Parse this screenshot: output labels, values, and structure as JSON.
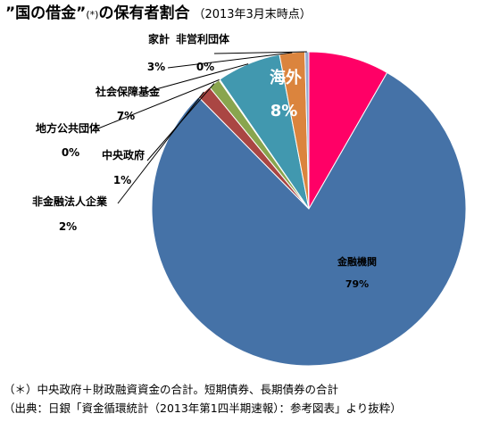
{
  "title": {
    "main": "”国の借金”",
    "mark": "(*)",
    "rest": "の保有者割合",
    "date": "（2013年3月末時点）"
  },
  "chart_data": {
    "type": "pie",
    "title": "”国の借金”(*)の保有者割合",
    "slices": [
      {
        "label": "海外",
        "percent_label": "8%",
        "value": 8.3,
        "color": "#ff0066"
      },
      {
        "label": "金融機関",
        "percent_label": "79%",
        "value": 79.3,
        "color": "#4572a7"
      },
      {
        "label": "非金融法人企業",
        "percent_label": "2%",
        "value": 1.5,
        "color": "#aa4643"
      },
      {
        "label": "中央政府",
        "percent_label": "1%",
        "value": 1.2,
        "color": "#89a54e"
      },
      {
        "label": "地方公共団体",
        "percent_label": "0%",
        "value": 0.1,
        "color": "#71588f"
      },
      {
        "label": "社会保障基金",
        "percent_label": "7%",
        "value": 6.6,
        "color": "#4198af"
      },
      {
        "label": "家計",
        "percent_label": "3%",
        "value": 2.6,
        "color": "#db843d"
      },
      {
        "label": "非営利団体",
        "percent_label": "0%",
        "value": 0.4,
        "color": "#93a9cf"
      }
    ],
    "legend": "none"
  },
  "notes": [
    "（＊）中央政府＋財政融資資金の合計。短期債券、長期債券の合計",
    "（出典：日銀「資金循環統計（2013年第1四半期速報）：参考図表」より抜粋）"
  ]
}
